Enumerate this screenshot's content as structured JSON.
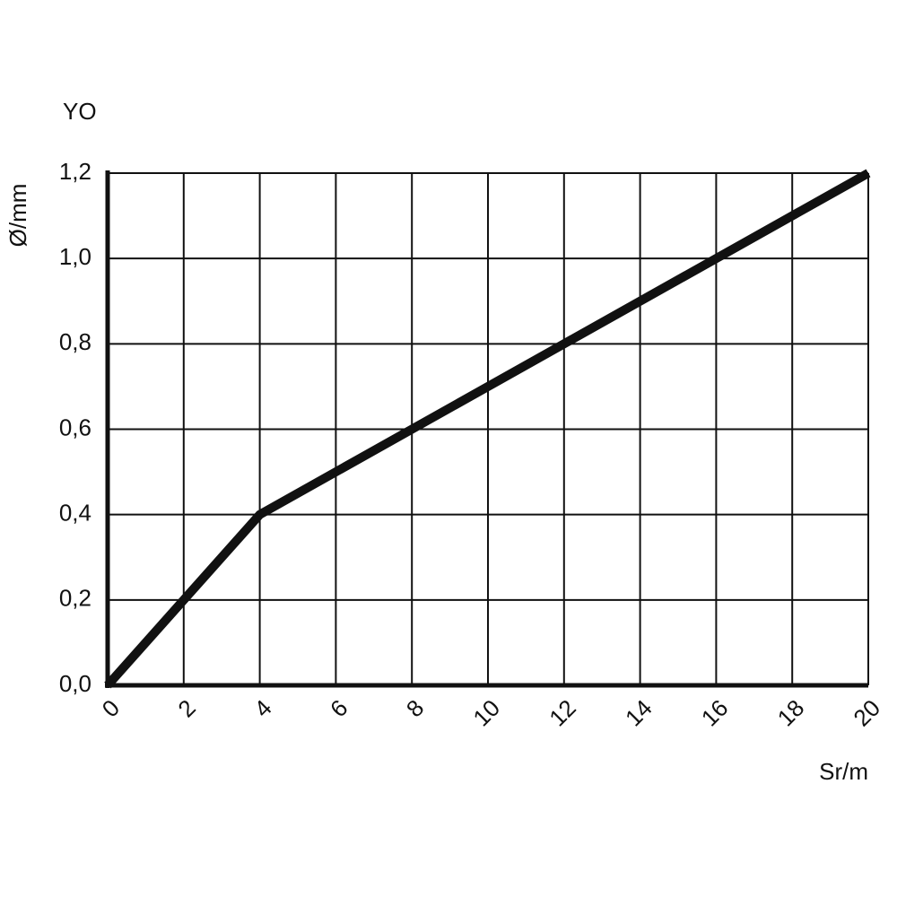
{
  "chart_data": {
    "type": "line",
    "title": "YO",
    "y_label": "Ø/mm",
    "x_label": "Sr/m",
    "x": [
      0,
      4,
      20
    ],
    "series": [
      {
        "name": "Ø",
        "color": "#111111",
        "values": [
          0,
          0.4,
          1.2
        ]
      }
    ],
    "xlim": [
      0,
      20
    ],
    "xticks": [
      0,
      2,
      4,
      6,
      8,
      10,
      12,
      14,
      16,
      18,
      20
    ],
    "ylim": [
      0,
      1.2
    ],
    "yticks": [
      {
        "value": 0,
        "label": "0,0"
      },
      {
        "value": 0.2,
        "label": "0,2"
      },
      {
        "value": 0.4,
        "label": "0,4"
      },
      {
        "value": 0.6,
        "label": "0,6"
      },
      {
        "value": 0.8,
        "label": "0,8"
      },
      {
        "value": 1.0,
        "label": "1,0"
      },
      {
        "value": 1.2,
        "label": "1,2"
      }
    ],
    "grid": true
  }
}
